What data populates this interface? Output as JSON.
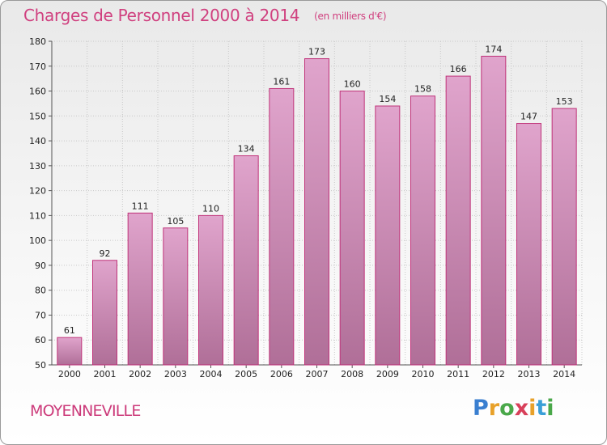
{
  "header": {
    "title": "Charges de Personnel 2000 à 2014",
    "subtitle": "(en milliers d'€)"
  },
  "footer": {
    "commune": "MOYENNEVILLE",
    "brand": {
      "letters": [
        "P",
        "r",
        "o",
        "x",
        "i",
        "t",
        "i"
      ],
      "colors": [
        "#3a7fd0",
        "#e8a12a",
        "#4aa84a",
        "#d8405a",
        "#e8a12a",
        "#3a9fd8",
        "#4aa84a"
      ]
    }
  },
  "colors": {
    "bar_top": "#e0a4cc",
    "bar_bottom": "#b06f98",
    "bar_edge": "#c0337a",
    "grid": "#c8c8c8",
    "title": "#d0407f"
  },
  "chart_data": {
    "type": "bar",
    "categories": [
      "2000",
      "2001",
      "2002",
      "2003",
      "2004",
      "2005",
      "2006",
      "2007",
      "2008",
      "2009",
      "2010",
      "2011",
      "2012",
      "2013",
      "2014"
    ],
    "values": [
      61,
      92,
      111,
      105,
      110,
      134,
      161,
      173,
      160,
      154,
      158,
      166,
      174,
      147,
      153
    ],
    "ylim": [
      50,
      180
    ],
    "yticks": [
      50,
      60,
      70,
      80,
      90,
      100,
      110,
      120,
      130,
      140,
      150,
      160,
      170,
      180
    ],
    "grid": true,
    "title": "Charges de Personnel 2000 à 2014",
    "xlabel": "",
    "ylabel": ""
  }
}
